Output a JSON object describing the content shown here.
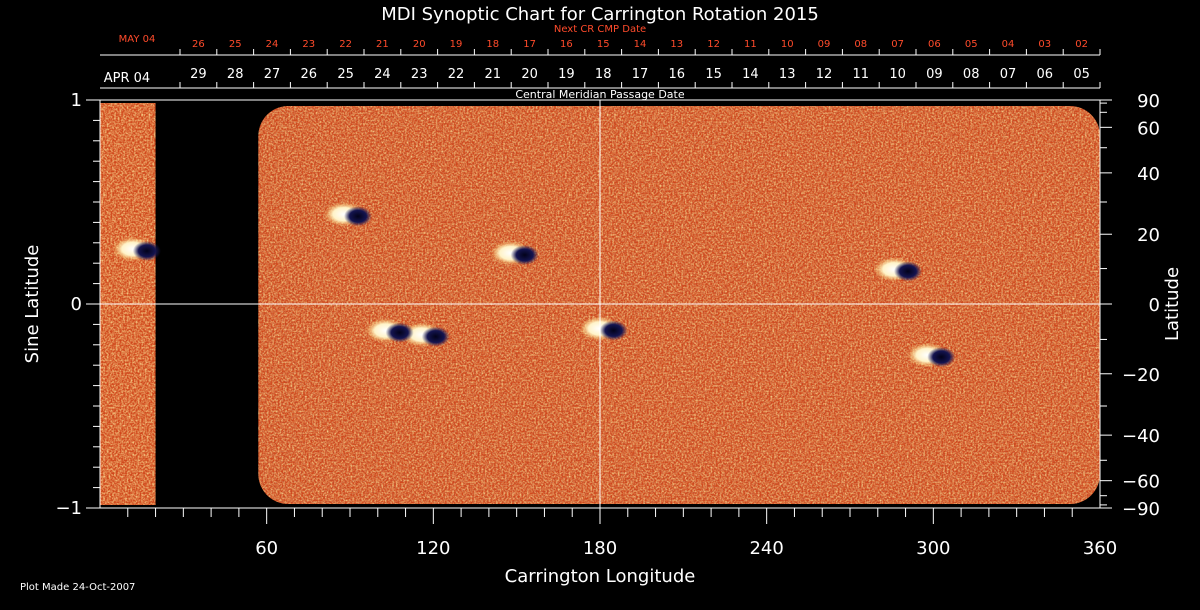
{
  "chart_data": {
    "type": "heatmap",
    "title": "MDI Synoptic Chart for Carrington Rotation 2015",
    "xlabel": "Carrington Longitude",
    "ylabel_left": "Sine Latitude",
    "ylabel_right": "Latitude",
    "xlim": [
      0,
      360
    ],
    "ylim": [
      -1,
      1
    ],
    "x_ticks": [
      60,
      120,
      180,
      240,
      300,
      360
    ],
    "y_ticks_left": [
      "−1",
      "0",
      "1"
    ],
    "y_ticks_right": [
      -90,
      -60,
      -40,
      -20,
      0,
      20,
      40,
      60,
      90
    ],
    "y_tick_labels_right": [
      "−90",
      "−60",
      "−40",
      "−20",
      "0",
      "20",
      "40",
      "60",
      "90"
    ],
    "top_axis_1": {
      "label": "Next CR CMP Date",
      "first_label": "MAY 04",
      "dates": [
        "26",
        "25",
        "24",
        "23",
        "22",
        "21",
        "20",
        "19",
        "18",
        "17",
        "16",
        "15",
        "14",
        "13",
        "12",
        "11",
        "10",
        "09",
        "08",
        "07",
        "06",
        "05",
        "04",
        "03",
        "02"
      ]
    },
    "top_axis_2": {
      "label": "Central Meridian Passage Date",
      "first_label": "APR 04",
      "dates": [
        "29",
        "28",
        "27",
        "26",
        "25",
        "24",
        "23",
        "22",
        "21",
        "20",
        "19",
        "18",
        "17",
        "16",
        "15",
        "14",
        "13",
        "12",
        "11",
        "10",
        "09",
        "08",
        "07",
        "06",
        "05"
      ]
    },
    "data_gap_longitude": [
      20,
      57
    ],
    "crosshair": {
      "longitude": 180,
      "sine_latitude": 0
    },
    "active_regions": [
      {
        "longitude": 150,
        "sine_latitude": 0.25,
        "polarity": "mixed"
      },
      {
        "longitude": 118,
        "sine_latitude": -0.15,
        "polarity": "mixed"
      },
      {
        "longitude": 105,
        "sine_latitude": -0.13,
        "polarity": "mixed"
      },
      {
        "longitude": 182,
        "sine_latitude": -0.12,
        "polarity": "mixed"
      },
      {
        "longitude": 300,
        "sine_latitude": -0.25,
        "polarity": "mixed"
      },
      {
        "longitude": 288,
        "sine_latitude": 0.17,
        "polarity": "mixed"
      },
      {
        "longitude": 90,
        "sine_latitude": 0.44,
        "polarity": "mixed"
      },
      {
        "longitude": 14,
        "sine_latitude": 0.27,
        "polarity": "mixed"
      }
    ],
    "colors": {
      "background": "#000000",
      "field": "#d0481c",
      "positive": "#ffffff",
      "negative": "#0b0b30",
      "axis": "#ffffff",
      "top_axis_1": "#ff4b2b"
    }
  },
  "footer": {
    "plot_made": "Plot Made 24-Oct-2007"
  }
}
